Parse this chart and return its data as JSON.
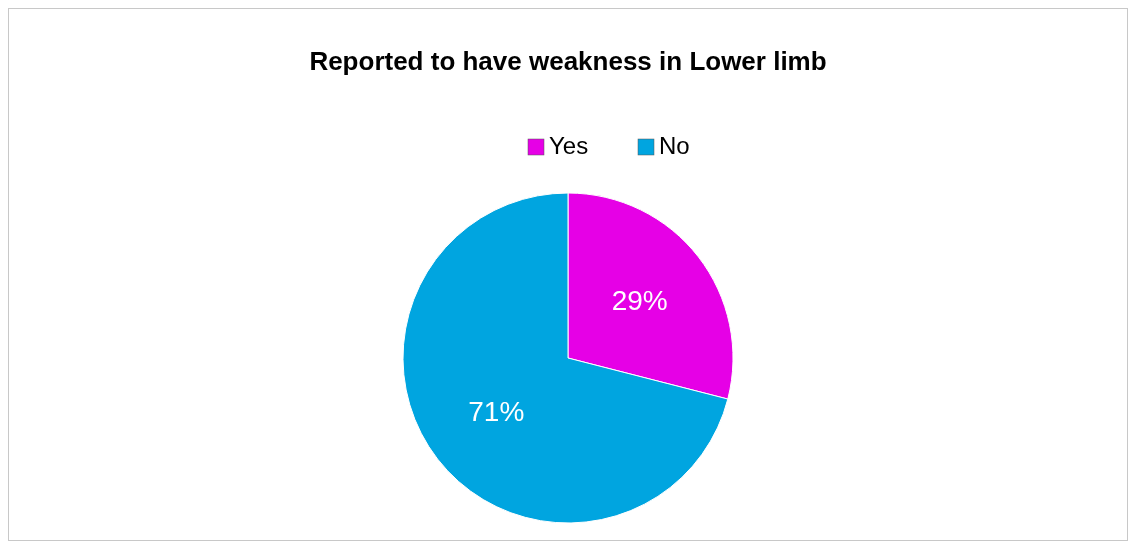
{
  "chart_data": {
    "type": "pie",
    "title": "Reported to have weakness in Lower limb",
    "categories": [
      "Yes",
      "No"
    ],
    "values": [
      29,
      71
    ],
    "colors": [
      "#e600e6",
      "#00a5e0"
    ],
    "value_labels": [
      "29%",
      "71%"
    ],
    "legend": "top"
  }
}
